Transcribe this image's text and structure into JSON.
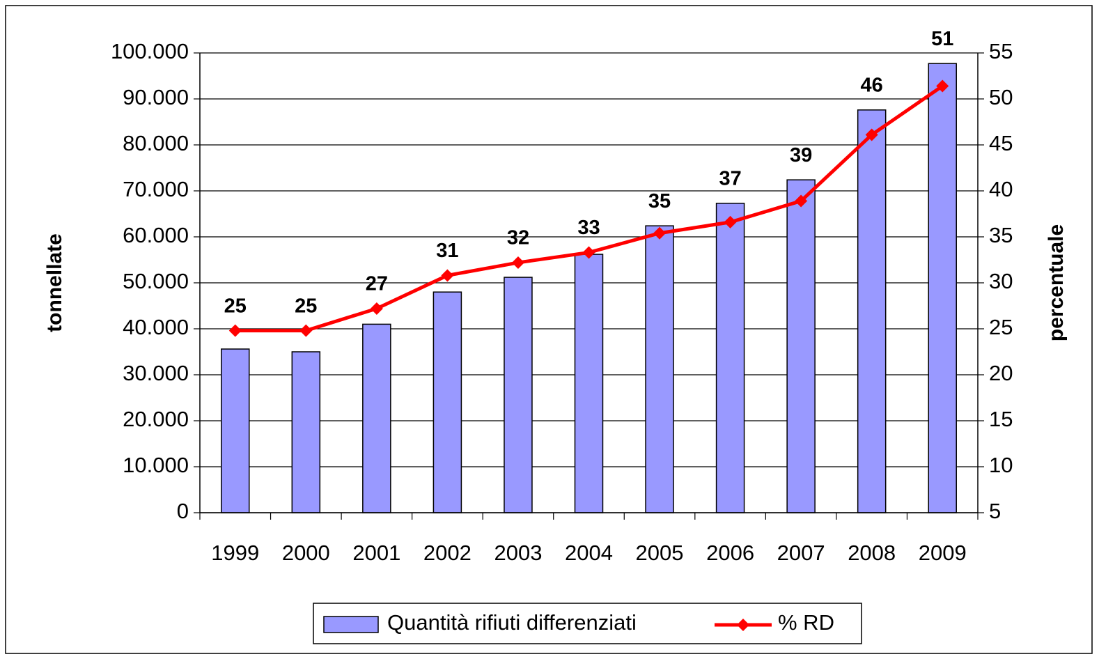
{
  "chart_data": {
    "type": "bar_line",
    "categories": [
      "1999",
      "2000",
      "2001",
      "2002",
      "2003",
      "2004",
      "2005",
      "2006",
      "2007",
      "2008",
      "2009"
    ],
    "y_label": "tonnellate",
    "y2_label": "percentuale",
    "series": [
      {
        "name": "Quantità rifiuti differenziati",
        "type": "bar",
        "color": "#9999ff",
        "values": [
          35600,
          35000,
          41000,
          48000,
          51200,
          56200,
          62400,
          67300,
          72400,
          87600,
          97700
        ]
      },
      {
        "name": "% RD",
        "type": "line",
        "axis": "y2",
        "color": "#ff0000",
        "values": [
          24.8,
          24.8,
          27.2,
          30.8,
          32.2,
          33.3,
          35.4,
          36.6,
          38.9,
          46.1,
          51.4
        ],
        "value_labels": [
          "25",
          "25",
          "27",
          "31",
          "32",
          "33",
          "35",
          "37",
          "39",
          "46",
          "51"
        ]
      }
    ],
    "ylim": [
      0,
      100000
    ],
    "yticks": [
      0,
      {
        "value": 10000,
        "label": "10.000"
      },
      {
        "value": 20000,
        "label": "20.000"
      },
      {
        "value": 30000,
        "label": "30.000"
      },
      {
        "value": 40000,
        "label": "40.000"
      },
      {
        "value": 50000,
        "label": "50.000"
      },
      {
        "value": 60000,
        "label": "60.000"
      },
      {
        "value": 70000,
        "label": "70.000"
      },
      {
        "value": 80000,
        "label": "80.000"
      },
      {
        "value": 90000,
        "label": "90.000"
      },
      {
        "value": 100000,
        "label": "100.000"
      }
    ],
    "y2lim": [
      5,
      55
    ],
    "y2ticks": [
      5,
      10,
      15,
      20,
      25,
      30,
      35,
      40,
      45,
      50,
      55
    ],
    "grid": true,
    "legend": "bottom"
  }
}
